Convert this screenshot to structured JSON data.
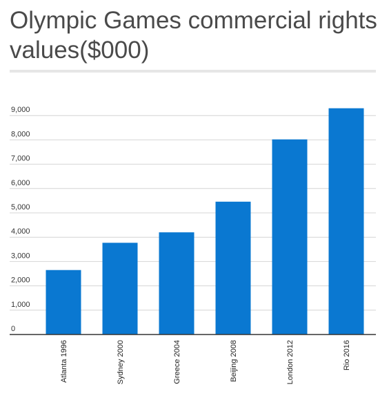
{
  "title": "Olympic Games commercial rights values($000)",
  "chart_data": {
    "type": "bar",
    "categories": [
      "Atlanta 1996",
      "Sydney 2000",
      "Greece 2004",
      "Beijing 2008",
      "London 2012",
      "Rio 2016"
    ],
    "values": [
      2650,
      3770,
      4200,
      5460,
      8020,
      9300
    ],
    "yticks": [
      "0",
      "1,000",
      "2,000",
      "3,000",
      "4,000",
      "5,000",
      "6,000",
      "7,000",
      "8,000",
      "9,000"
    ],
    "ylim": [
      0,
      9500
    ],
    "grid": true,
    "bar_color": "#0a78d1"
  }
}
